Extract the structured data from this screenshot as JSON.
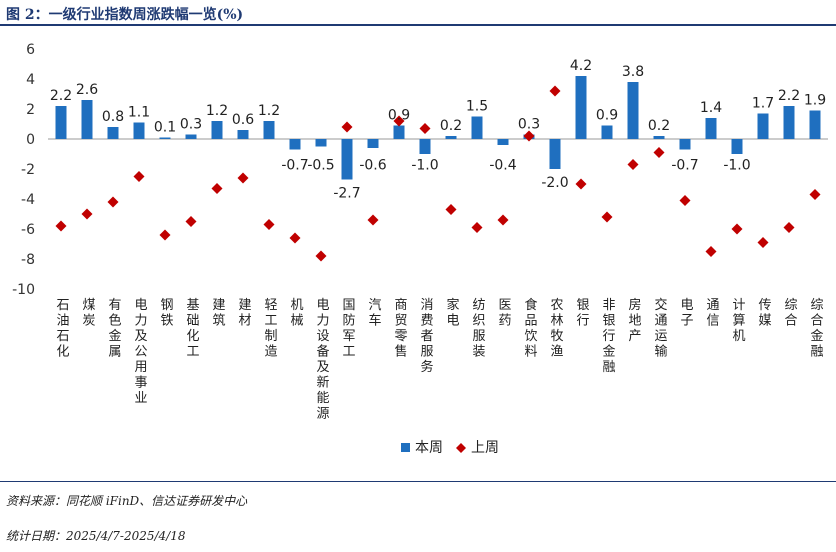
{
  "title": "图 2：一级行业指数周涨跌幅一览(%)",
  "source": "资料来源：同花顺 iFinD、信达证券研发中心",
  "period": "统计日期：2025/4/7-2025/4/18",
  "colors": {
    "bar": "#1f6fbf",
    "diamond": "#c00000",
    "title": "#1f3a73"
  },
  "chart_data": {
    "type": "bar",
    "title": "一级行业指数周涨跌幅一览(%)",
    "ylim": [
      -10,
      6
    ],
    "yticks": [
      6,
      4,
      2,
      0,
      -2,
      -4,
      -6,
      -8,
      -10
    ],
    "categories": [
      "石油石化",
      "煤炭",
      "有色金属",
      "电力及公用事业",
      "钢铁",
      "基础化工",
      "建筑",
      "建材",
      "轻工制造",
      "机械",
      "电力设备及新能源",
      "国防军工",
      "汽车",
      "商贸零售",
      "消费者服务",
      "家电",
      "纺织服装",
      "医药",
      "食品饮料",
      "农林牧渔",
      "银行",
      "非银行金融",
      "房地产",
      "交通运输",
      "电子",
      "通信",
      "计算机",
      "传媒",
      "综合",
      "综合金融"
    ],
    "series": [
      {
        "name": "本周",
        "kind": "bar",
        "values": [
          2.2,
          2.6,
          0.8,
          1.1,
          0.1,
          0.3,
          1.2,
          0.6,
          1.2,
          -0.7,
          -0.5,
          -2.7,
          -0.6,
          0.9,
          -1.0,
          0.2,
          1.5,
          -0.4,
          0.3,
          -2.0,
          4.2,
          0.9,
          3.8,
          0.2,
          -0.7,
          1.4,
          -1.0,
          1.7,
          2.2,
          1.9
        ]
      },
      {
        "name": "上周",
        "kind": "diamond",
        "values": [
          -5.8,
          -5.0,
          -4.2,
          -2.5,
          -6.4,
          -5.5,
          -3.3,
          -2.6,
          -5.7,
          -6.6,
          -7.8,
          0.8,
          -5.4,
          1.2,
          0.7,
          -4.7,
          -5.9,
          -5.4,
          0.2,
          3.2,
          -3.0,
          -5.2,
          -1.7,
          -0.9,
          -4.1,
          -7.5,
          -6.0,
          -6.9,
          -5.9,
          -3.7
        ]
      }
    ],
    "data_labels": [
      "2.2",
      "2.6",
      "0.8",
      "1.1",
      "0.1",
      "0.3",
      "1.2",
      "0.6",
      "1.2",
      "-0.7",
      "-0.5",
      "-2.7",
      "-0.6",
      "0.9",
      "-1.0",
      "0.2",
      "1.5",
      "-0.4",
      "0.3",
      "-2.0",
      "4.2",
      "0.9",
      "3.8",
      "0.2",
      "-0.7",
      "1.4",
      "-1.0",
      "1.7",
      "2.2",
      "1.9"
    ],
    "legend": [
      "本周",
      "上周"
    ],
    "legend_position": "bottom-center",
    "grid": false
  }
}
